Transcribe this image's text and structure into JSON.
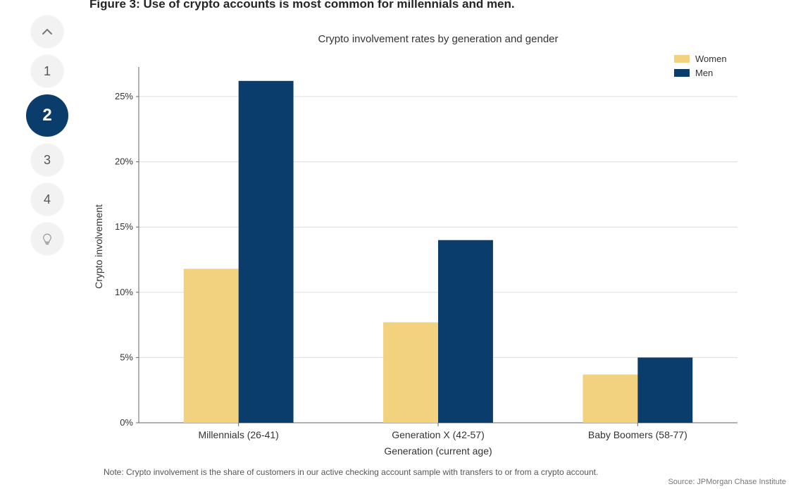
{
  "nav": {
    "items": [
      {
        "label": "⌃",
        "key": "up",
        "active": false,
        "icon": "chevron-up"
      },
      {
        "label": "1",
        "key": "1",
        "active": false
      },
      {
        "label": "2",
        "key": "2",
        "active": true
      },
      {
        "label": "3",
        "key": "3",
        "active": false
      },
      {
        "label": "4",
        "key": "4",
        "active": false
      },
      {
        "label": "☆",
        "key": "bulb",
        "active": false,
        "icon": "lightbulb"
      }
    ]
  },
  "figure_caption": "Figure 3: Use of crypto accounts is most common for millennials and men.",
  "chart": {
    "type": "grouped-bar",
    "title": "Crypto involvement rates by generation and gender",
    "title_fontsize": 15,
    "xlabel": "Generation (current age)",
    "ylabel": "Crypto involvement",
    "label_fontsize": 14,
    "tick_fontsize": 13,
    "categories": [
      "Millennials (26-41)",
      "Generation X (42-57)",
      "Baby Boomers (58-77)"
    ],
    "series": [
      {
        "name": "Women",
        "color": "#f2d27f",
        "values": [
          11.8,
          7.7,
          3.7
        ]
      },
      {
        "name": "Men",
        "color": "#0a3d6b",
        "values": [
          26.2,
          14.0,
          5.0
        ]
      }
    ],
    "ylim": [
      0,
      27
    ],
    "yticks": [
      0,
      5,
      10,
      15,
      20,
      25
    ],
    "ytick_labels": [
      "0%",
      "5%",
      "10%",
      "15%",
      "20%",
      "25%"
    ],
    "grid_color": "#dcdcdc",
    "axis_color": "#666666",
    "background_color": "#ffffff",
    "bar_group_gap": 0.45,
    "bar_width": 0.55,
    "legend": {
      "position": "top-right",
      "swatch_w": 22,
      "swatch_h": 11
    }
  },
  "note": "Note: Crypto involvement is the share of customers in our active checking account sample with transfers to or from a crypto account.",
  "source": "Source: JPMorgan Chase Institute"
}
